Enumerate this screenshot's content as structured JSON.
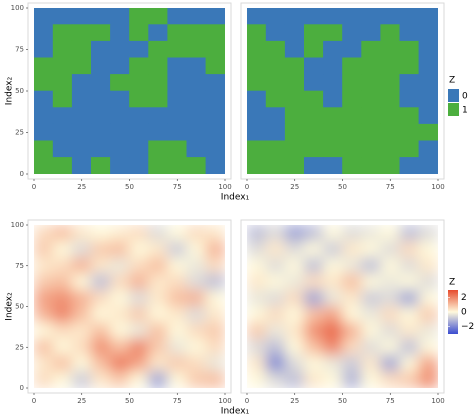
{
  "chart_data": [
    {
      "type": "binary-raster",
      "xlabel": "Index₁",
      "ylabel": "Index₂",
      "xlim": [
        0,
        100
      ],
      "ylim": [
        0,
        100
      ],
      "xticks": [
        0,
        25,
        50,
        75,
        100
      ],
      "yticks": [
        0,
        25,
        50,
        75,
        100
      ],
      "legend": {
        "title": "Z",
        "entries": [
          {
            "label": "0",
            "color": "#3a78b8"
          },
          {
            "label": "1",
            "color": "#4cae3e"
          }
        ]
      },
      "panels": [
        {
          "z": [
            [
              0,
              0,
              0,
              0,
              0,
              1,
              1,
              0,
              0,
              0
            ],
            [
              0,
              1,
              1,
              1,
              0,
              1,
              0,
              1,
              1,
              1
            ],
            [
              0,
              1,
              1,
              0,
              0,
              0,
              1,
              1,
              1,
              1
            ],
            [
              1,
              1,
              1,
              0,
              0,
              1,
              1,
              0,
              0,
              1
            ],
            [
              1,
              1,
              0,
              0,
              1,
              1,
              1,
              0,
              0,
              0
            ],
            [
              0,
              1,
              0,
              0,
              0,
              1,
              1,
              0,
              0,
              0
            ],
            [
              0,
              0,
              0,
              0,
              0,
              0,
              0,
              0,
              0,
              0
            ],
            [
              0,
              0,
              0,
              0,
              0,
              0,
              0,
              0,
              0,
              0
            ],
            [
              1,
              0,
              0,
              0,
              0,
              0,
              1,
              1,
              0,
              0
            ],
            [
              1,
              1,
              0,
              1,
              0,
              0,
              1,
              1,
              1,
              0
            ]
          ]
        },
        {
          "z": [
            [
              0,
              0,
              0,
              0,
              0,
              0,
              0,
              0,
              0,
              0
            ],
            [
              1,
              0,
              0,
              1,
              1,
              0,
              0,
              1,
              0,
              0
            ],
            [
              1,
              1,
              0,
              1,
              0,
              0,
              1,
              1,
              1,
              0
            ],
            [
              1,
              1,
              1,
              0,
              0,
              1,
              1,
              1,
              1,
              0
            ],
            [
              1,
              1,
              1,
              0,
              0,
              1,
              1,
              1,
              0,
              0
            ],
            [
              0,
              1,
              1,
              1,
              0,
              1,
              1,
              1,
              0,
              0
            ],
            [
              0,
              0,
              1,
              1,
              1,
              1,
              1,
              1,
              1,
              0
            ],
            [
              0,
              0,
              1,
              1,
              1,
              1,
              1,
              1,
              1,
              1
            ],
            [
              1,
              1,
              1,
              1,
              1,
              1,
              1,
              1,
              1,
              0
            ],
            [
              1,
              1,
              1,
              0,
              0,
              1,
              1,
              1,
              0,
              0
            ]
          ]
        }
      ]
    },
    {
      "type": "continuous-raster",
      "xlabel": "Index₁",
      "ylabel": "Index₂",
      "xlim": [
        0,
        100
      ],
      "ylim": [
        0,
        100
      ],
      "xticks": [
        0,
        25,
        50,
        75,
        100
      ],
      "yticks": [
        0,
        25,
        50,
        75,
        100
      ],
      "colorbar": {
        "title": "Z",
        "zlim": [
          -3,
          3
        ],
        "low": "#3b4cd0",
        "mid": "#fff9dc",
        "high": "#e64a2c",
        "ticks": [
          2,
          0,
          {
            "value": -2,
            "label": "−2"
          }
        ]
      },
      "panels": [
        {
          "z": [
            [
              0.5,
              1,
              0.3,
              0,
              0.2,
              0.5,
              -0.5,
              0,
              0.5,
              0.3
            ],
            [
              0.8,
              0,
              -0.5,
              0.8,
              1,
              0,
              0.3,
              -0.8,
              0,
              1.2
            ],
            [
              0.3,
              0.5,
              1.2,
              0.3,
              -0.3,
              0.5,
              1,
              0,
              -0.3,
              0.5
            ],
            [
              0.8,
              1,
              0,
              -1,
              0.5,
              1.2,
              0.3,
              0.5,
              -0.5,
              -1
            ],
            [
              1.5,
              1.8,
              1.2,
              0.5,
              0,
              -0.5,
              0.3,
              1,
              1.2,
              0
            ],
            [
              1.2,
              2,
              1,
              0,
              0.3,
              0.8,
              0,
              0.3,
              -0.5,
              0.3
            ],
            [
              0,
              0.5,
              0.3,
              1,
              0,
              -0.3,
              1,
              0,
              0.5,
              0.8
            ],
            [
              1,
              0,
              0.5,
              1.8,
              1,
              2,
              0.8,
              -0.3,
              0,
              0.5
            ],
            [
              0.3,
              1,
              0,
              1,
              2.2,
              1.5,
              0.3,
              0.8,
              0.5,
              -0.3
            ],
            [
              0.5,
              0,
              -0.8,
              0.3,
              0.8,
              0,
              -1.5,
              0,
              0.8,
              1
            ]
          ]
        },
        {
          "z": [
            [
              -1,
              -0.5,
              -1.5,
              -1,
              0,
              -0.5,
              -0.3,
              0,
              -1,
              -0.5
            ],
            [
              -0.5,
              0.3,
              -0.5,
              0,
              -0.8,
              0.3,
              0,
              -0.5,
              0.5,
              0
            ],
            [
              0,
              -0.5,
              0,
              -1,
              0,
              -0.3,
              -1,
              0,
              -0.5,
              0.3
            ],
            [
              0.3,
              0,
              -0.3,
              0.5,
              0.3,
              1,
              0,
              -0.3,
              0,
              -0.5
            ],
            [
              -0.3,
              -0.5,
              0.5,
              -1.5,
              -0.3,
              0.3,
              -0.8,
              -0.5,
              -1.5,
              0
            ],
            [
              0,
              0.5,
              0,
              1,
              1.5,
              0,
              -0.3,
              0.5,
              0,
              0.8
            ],
            [
              0.8,
              -0.3,
              0.3,
              1.8,
              2.5,
              1.2,
              0,
              -0.5,
              0.3,
              -0.3
            ],
            [
              -0.5,
              -1,
              0,
              1,
              2,
              0.5,
              -0.5,
              0,
              -1,
              0
            ],
            [
              0.3,
              -2,
              -0.5,
              0,
              -0.3,
              -0.8,
              0.3,
              -1.5,
              0,
              1.5
            ],
            [
              0,
              -0.5,
              -1,
              0.3,
              0,
              -1.2,
              0,
              0.5,
              0.8,
              1.8
            ]
          ]
        }
      ]
    }
  ]
}
